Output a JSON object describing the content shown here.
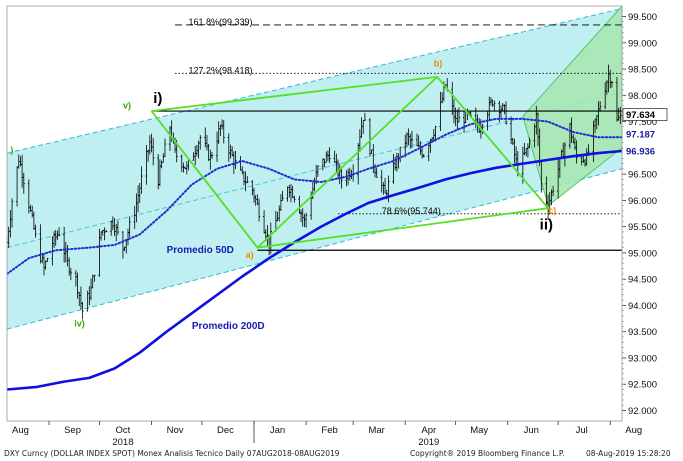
{
  "chart_data": {
    "type": "line",
    "title": "",
    "xlabel": "",
    "ylabel": "",
    "x_range": [
      "2018-08-07",
      "2019-08-08"
    ],
    "ylim": [
      91.8,
      99.7
    ],
    "grid": false,
    "y_ticks": [
      "99.500",
      "99.000",
      "98.500",
      "98.000",
      "97.500",
      "97.000",
      "96.500",
      "96.000",
      "95.500",
      "95.000",
      "94.500",
      "94.000",
      "93.500",
      "93.000",
      "92.500",
      "92.000"
    ],
    "y_tick_values": [
      99.5,
      99.0,
      98.5,
      98.0,
      97.5,
      97.0,
      96.5,
      96.0,
      95.5,
      95.0,
      94.5,
      94.0,
      93.5,
      93.0,
      92.5,
      92.0
    ],
    "x_ticks": [
      {
        "label": "Aug",
        "date": "2018-08-15"
      },
      {
        "label": "Sep",
        "date": "2018-09-15"
      },
      {
        "label": "Oct",
        "date": "2018-10-15"
      },
      {
        "label": "Nov",
        "date": "2018-11-15"
      },
      {
        "label": "Dec",
        "date": "2018-12-15"
      },
      {
        "label": "Jan",
        "date": "2019-01-15"
      },
      {
        "label": "Feb",
        "date": "2019-02-15"
      },
      {
        "label": "Mar",
        "date": "2019-03-15"
      },
      {
        "label": "Apr",
        "date": "2019-04-15"
      },
      {
        "label": "May",
        "date": "2019-05-15"
      },
      {
        "label": "Jun",
        "date": "2019-06-15"
      },
      {
        "label": "Jul",
        "date": "2019-07-15"
      },
      {
        "label": "Aug",
        "date": "2019-08-15"
      }
    ],
    "year_labels": [
      {
        "label": "2018",
        "date": "2018-10-15"
      },
      {
        "label": "2019",
        "date": "2019-04-15"
      }
    ],
    "price_labels": [
      {
        "label": "97.634",
        "value": 97.634,
        "bg": "#ffffff",
        "fg": "#000000"
      },
      {
        "label": "97.187",
        "value": 97.26,
        "bg": "#ffffff",
        "fg": "#1a1aa0"
      },
      {
        "label": "96.936",
        "value": 96.94,
        "bg": "#ffffff",
        "fg": "#1a1aa0"
      }
    ],
    "series": [
      {
        "name": "DXY Curncy",
        "kind": "ohlc",
        "color": "#000000",
        "anchors": [
          [
            "2018-08-07",
            95.2
          ],
          [
            "2018-08-10",
            96.0
          ],
          [
            "2018-08-14",
            96.8
          ],
          [
            "2018-08-17",
            96.4
          ],
          [
            "2018-08-24",
            95.3
          ],
          [
            "2018-08-29",
            94.7
          ],
          [
            "2018-09-03",
            95.2
          ],
          [
            "2018-09-07",
            95.4
          ],
          [
            "2018-09-12",
            94.8
          ],
          [
            "2018-09-17",
            94.5
          ],
          [
            "2018-09-21",
            93.9
          ],
          [
            "2018-09-26",
            94.3
          ],
          [
            "2018-10-02",
            95.4
          ],
          [
            "2018-10-09",
            95.6
          ],
          [
            "2018-10-15",
            95.1
          ],
          [
            "2018-10-22",
            95.8
          ],
          [
            "2018-10-26",
            96.4
          ],
          [
            "2018-10-31",
            97.1
          ],
          [
            "2018-11-05",
            96.4
          ],
          [
            "2018-11-12",
            97.4
          ],
          [
            "2018-11-15",
            96.9
          ],
          [
            "2018-11-22",
            96.6
          ],
          [
            "2018-11-30",
            97.2
          ],
          [
            "2018-12-06",
            96.8
          ],
          [
            "2018-12-12",
            97.4
          ],
          [
            "2018-12-18",
            96.9
          ],
          [
            "2018-12-24",
            96.5
          ],
          [
            "2018-12-31",
            96.2
          ],
          [
            "2019-01-04",
            95.8
          ],
          [
            "2019-01-10",
            95.2
          ],
          [
            "2019-01-14",
            95.6
          ],
          [
            "2019-01-21",
            96.3
          ],
          [
            "2019-01-25",
            96.1
          ],
          [
            "2019-01-31",
            95.6
          ],
          [
            "2019-02-08",
            96.6
          ],
          [
            "2019-02-15",
            96.9
          ],
          [
            "2019-02-22",
            96.4
          ],
          [
            "2019-03-01",
            96.6
          ],
          [
            "2019-03-07",
            97.6
          ],
          [
            "2019-03-13",
            96.7
          ],
          [
            "2019-03-20",
            96.1
          ],
          [
            "2019-03-26",
            96.7
          ],
          [
            "2019-04-02",
            97.2
          ],
          [
            "2019-04-08",
            97.0
          ],
          [
            "2019-04-12",
            96.9
          ],
          [
            "2019-04-19",
            97.4
          ],
          [
            "2019-04-25",
            98.2
          ],
          [
            "2019-05-01",
            97.5
          ],
          [
            "2019-05-08",
            97.6
          ],
          [
            "2019-05-15",
            97.4
          ],
          [
            "2019-05-23",
            97.9
          ],
          [
            "2019-05-30",
            97.7
          ],
          [
            "2019-06-04",
            97.0
          ],
          [
            "2019-06-07",
            96.6
          ],
          [
            "2019-06-13",
            97.0
          ],
          [
            "2019-06-18",
            97.6
          ],
          [
            "2019-06-21",
            96.3
          ],
          [
            "2019-06-25",
            95.9
          ],
          [
            "2019-07-01",
            96.6
          ],
          [
            "2019-07-08",
            97.4
          ],
          [
            "2019-07-12",
            96.8
          ],
          [
            "2019-07-18",
            96.8
          ],
          [
            "2019-07-25",
            97.7
          ],
          [
            "2019-07-31",
            98.4
          ],
          [
            "2019-08-02",
            98.3
          ],
          [
            "2019-08-05",
            97.5
          ],
          [
            "2019-08-08",
            97.63
          ]
        ]
      },
      {
        "name": "Promedio 50D",
        "kind": "dotted",
        "color": "#1f2fd0",
        "points": [
          [
            "2018-08-07",
            94.6
          ],
          [
            "2018-08-20",
            94.9
          ],
          [
            "2018-09-05",
            95.05
          ],
          [
            "2018-09-25",
            95.1
          ],
          [
            "2018-10-10",
            95.15
          ],
          [
            "2018-10-25",
            95.35
          ],
          [
            "2018-11-10",
            95.8
          ],
          [
            "2018-11-25",
            96.3
          ],
          [
            "2018-12-10",
            96.6
          ],
          [
            "2018-12-25",
            96.75
          ],
          [
            "2019-01-10",
            96.6
          ],
          [
            "2019-01-25",
            96.4
          ],
          [
            "2019-02-10",
            96.35
          ],
          [
            "2019-02-25",
            96.45
          ],
          [
            "2019-03-10",
            96.6
          ],
          [
            "2019-03-25",
            96.75
          ],
          [
            "2019-04-10",
            97.0
          ],
          [
            "2019-04-25",
            97.25
          ],
          [
            "2019-05-10",
            97.45
          ],
          [
            "2019-05-25",
            97.55
          ],
          [
            "2019-06-10",
            97.55
          ],
          [
            "2019-06-25",
            97.5
          ],
          [
            "2019-07-10",
            97.3
          ],
          [
            "2019-07-25",
            97.2
          ],
          [
            "2019-08-08",
            97.2
          ]
        ]
      },
      {
        "name": "Promedio 200D",
        "kind": "solid",
        "color": "#1010e0",
        "points": [
          [
            "2018-08-07",
            92.4
          ],
          [
            "2018-08-25",
            92.45
          ],
          [
            "2018-09-10",
            92.55
          ],
          [
            "2018-09-25",
            92.62
          ],
          [
            "2018-10-10",
            92.8
          ],
          [
            "2018-10-25",
            93.1
          ],
          [
            "2018-11-10",
            93.5
          ],
          [
            "2018-11-25",
            93.85
          ],
          [
            "2018-12-10",
            94.2
          ],
          [
            "2018-12-25",
            94.55
          ],
          [
            "2019-01-10",
            94.9
          ],
          [
            "2019-01-25",
            95.2
          ],
          [
            "2019-02-10",
            95.5
          ],
          [
            "2019-02-25",
            95.75
          ],
          [
            "2019-03-10",
            95.95
          ],
          [
            "2019-03-25",
            96.1
          ],
          [
            "2019-04-10",
            96.25
          ],
          [
            "2019-04-25",
            96.4
          ],
          [
            "2019-05-10",
            96.52
          ],
          [
            "2019-05-25",
            96.62
          ],
          [
            "2019-06-10",
            96.7
          ],
          [
            "2019-06-25",
            96.77
          ],
          [
            "2019-07-10",
            96.84
          ],
          [
            "2019-07-25",
            96.9
          ],
          [
            "2019-08-08",
            96.94
          ]
        ]
      }
    ],
    "channel": {
      "fill": "#bfeff0",
      "outer_color": "#35b8d8",
      "upper": [
        [
          "2018-08-07",
          96.9
        ],
        [
          "2019-08-08",
          99.65
        ]
      ],
      "lower": [
        [
          "2018-08-07",
          93.55
        ],
        [
          "2019-08-08",
          96.6
        ]
      ],
      "mid": [
        [
          "2018-08-07",
          95.1
        ],
        [
          "2019-08-08",
          98.05
        ]
      ]
    },
    "green_channel": {
      "fill": "#a7e6b0",
      "line_color": "#3fbf55",
      "points": [
        [
          "2019-06-10",
          97.6
        ],
        [
          "2019-08-08",
          99.7
        ],
        [
          "2019-08-08",
          97.0
        ],
        [
          "2019-06-25",
          95.9
        ]
      ]
    },
    "elliott_lines": {
      "color": "#55e022",
      "paths": [
        [
          [
            "2018-11-01",
            97.7
          ],
          [
            "2019-01-03",
            95.1
          ],
          [
            "2019-04-20",
            98.35
          ],
          [
            "2019-06-25",
            95.85
          ]
        ],
        [
          [
            "2018-11-01",
            97.7
          ],
          [
            "2019-04-20",
            98.35
          ]
        ],
        [
          [
            "2019-01-03",
            95.1
          ],
          [
            "2019-06-25",
            95.85
          ]
        ]
      ]
    },
    "horizontal_lines": [
      {
        "value": 97.7,
        "from": "2018-11-01",
        "to": "2019-08-08",
        "style": "solid",
        "color": "#000000"
      },
      {
        "value": 95.05,
        "from": "2019-01-03",
        "to": "2019-08-08",
        "style": "solid",
        "color": "#000000"
      },
      {
        "value": 99.339,
        "from": "2018-11-15",
        "to": "2019-08-08",
        "style": "dashed",
        "color": "#000000"
      },
      {
        "value": 98.418,
        "from": "2018-11-15",
        "to": "2019-08-08",
        "style": "dotted",
        "color": "#000000"
      },
      {
        "value": 95.744,
        "from": "2019-02-20",
        "to": "2019-08-08",
        "style": "dotted",
        "color": "#000000"
      }
    ],
    "annotations": [
      {
        "text": "161.8%(99.339)",
        "date": "2018-11-23",
        "value": 99.339,
        "color": "#000000",
        "size": 9,
        "weight": "normal"
      },
      {
        "text": "127.2%(98.418)",
        "date": "2018-11-23",
        "value": 98.418,
        "color": "#000000",
        "size": 9,
        "weight": "normal"
      },
      {
        "text": "78.6%(95.744)",
        "date": "2019-03-18",
        "value": 95.744,
        "color": "#000000",
        "size": 9,
        "weight": "normal"
      },
      {
        "text": "i)",
        "date": "2018-11-02",
        "value": 97.85,
        "color": "#000000",
        "size": 15,
        "weight": "bold"
      },
      {
        "text": "v)",
        "date": "2018-10-15",
        "value": 97.75,
        "color": "#33a800",
        "size": 9,
        "weight": "bold"
      },
      {
        "text": ")",
        "date": "2018-08-09",
        "value": 96.9,
        "color": "#33a800",
        "size": 9,
        "weight": "bold"
      },
      {
        "text": "iv)",
        "date": "2018-09-16",
        "value": 93.6,
        "color": "#33a800",
        "size": 9,
        "weight": "bold"
      },
      {
        "text": "a)",
        "date": "2018-12-27",
        "value": 94.9,
        "color": "#f08a00",
        "size": 9,
        "weight": "bold"
      },
      {
        "text": "b)",
        "date": "2019-04-18",
        "value": 98.55,
        "color": "#f08a00",
        "size": 9,
        "weight": "bold"
      },
      {
        "text": "c)",
        "date": "2019-06-25",
        "value": 95.75,
        "color": "#f08a00",
        "size": 9,
        "weight": "bold"
      },
      {
        "text": "ii)",
        "date": "2019-06-20",
        "value": 95.45,
        "color": "#000000",
        "size": 15,
        "weight": "bold"
      },
      {
        "text": "Promedio 50D",
        "date": "2018-11-10",
        "value": 95.0,
        "color": "#1a1ab5",
        "size": 10,
        "weight": "bold"
      },
      {
        "text": "Promedio 200D",
        "date": "2018-11-25",
        "value": 93.55,
        "color": "#1a1ab5",
        "size": 10,
        "weight": "bold"
      }
    ]
  },
  "footer": {
    "left": "DXY Curncy (DOLLAR INDEX SPOT) Monex Analisis Tecnico  Daily 07AUG2018-08AUG2019",
    "center": "Copyright® 2019 Bloomberg Finance L.P.",
    "right": "08-Aug-2019 15:28:20"
  }
}
